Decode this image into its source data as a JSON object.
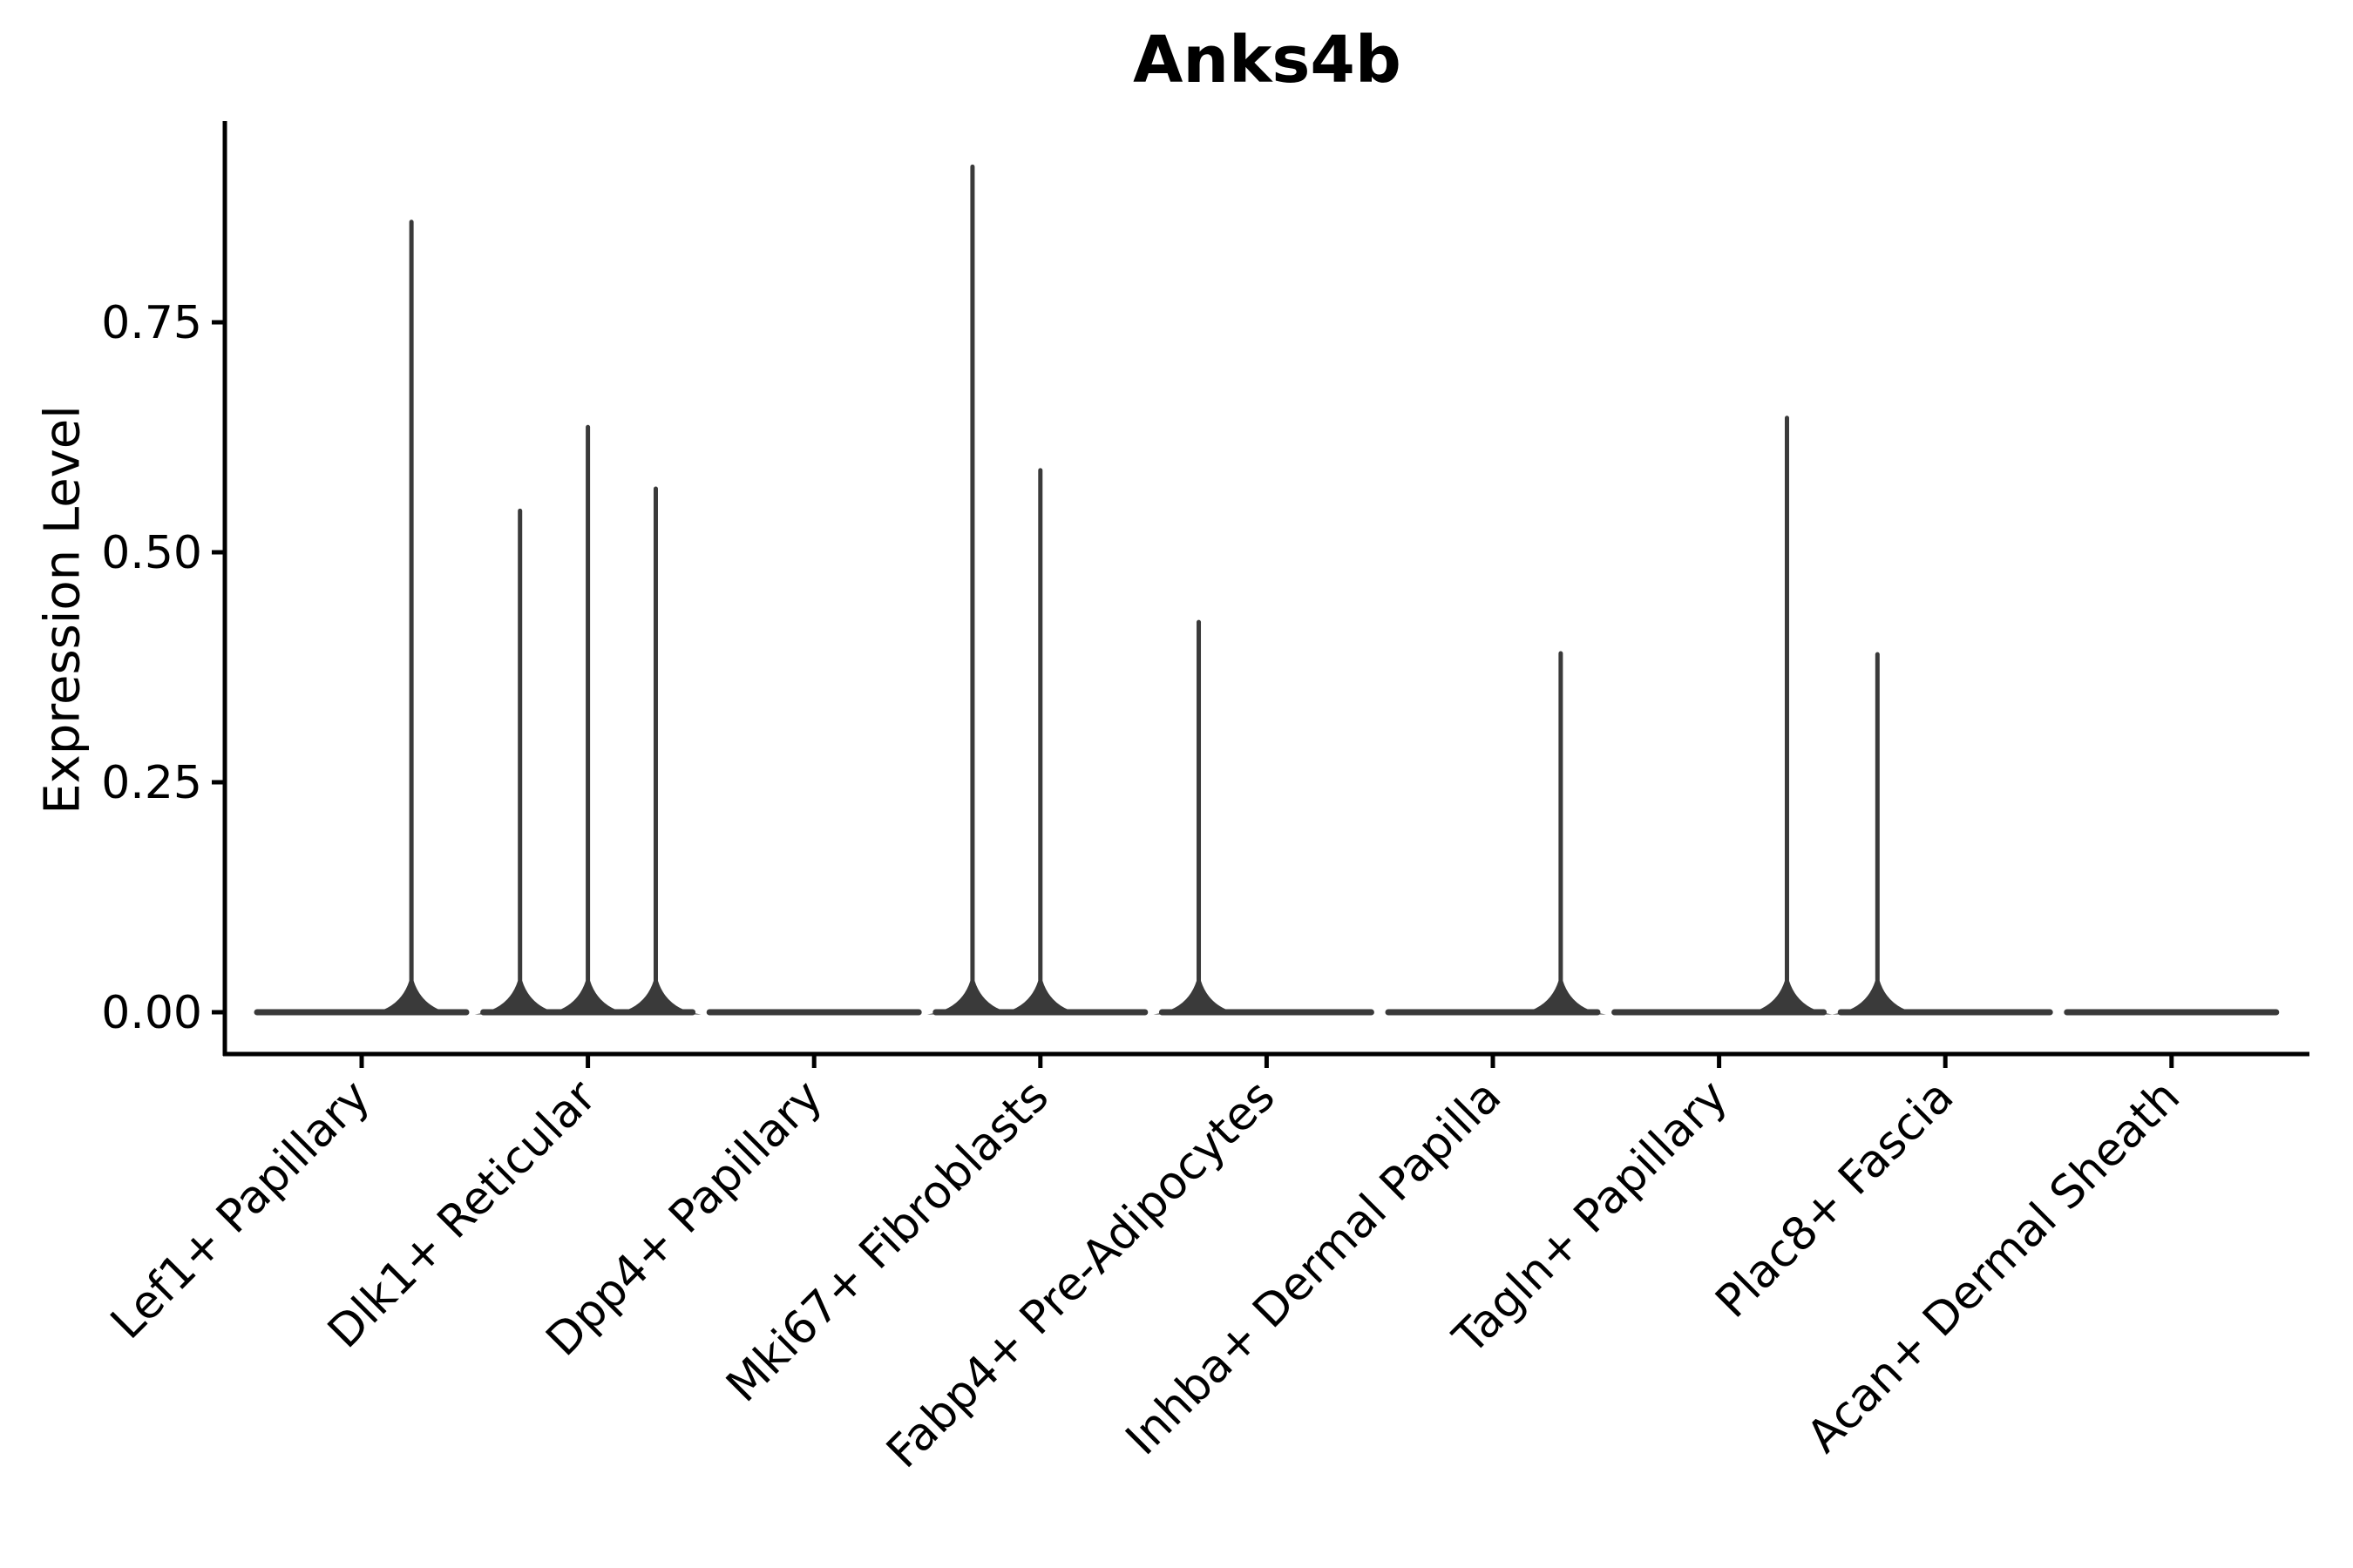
{
  "chart_data": {
    "type": "violin",
    "title": "Anks4b",
    "ylabel": "Expression Level",
    "xlabel": "",
    "ylim": [
      0,
      0.97
    ],
    "grid": false,
    "legend": "none",
    "yticks": [
      {
        "value": 0.0,
        "label": "0.00"
      },
      {
        "value": 0.25,
        "label": "0.25"
      },
      {
        "value": 0.5,
        "label": "0.50"
      },
      {
        "value": 0.75,
        "label": "0.75"
      }
    ],
    "categories": [
      "Lef1+ Papillary",
      "Dlk1+ Reticular",
      "Dpp4+ Papillary",
      "Mki67+ Fibroblasts",
      "Fabp4+ Pre-Adipocytes",
      "Inhba+ Dermal Papilla",
      "Tagln+ Papillary",
      "Plac8+ Fascia",
      "Acan+ Dermal Sheath"
    ],
    "violins": [
      {
        "category": "Lef1+ Papillary",
        "baseline_value": 0,
        "spikes": [
          {
            "pos": 0.22,
            "value": 0.861
          }
        ]
      },
      {
        "category": "Dlk1+ Reticular",
        "baseline_value": 0,
        "spikes": [
          {
            "pos": -0.3,
            "value": 0.547
          },
          {
            "pos": 0.0,
            "value": 0.638
          },
          {
            "pos": 0.3,
            "value": 0.571
          }
        ]
      },
      {
        "category": "Dpp4+ Papillary",
        "baseline_value": 0,
        "spikes": []
      },
      {
        "category": "Mki67+ Fibroblasts",
        "baseline_value": 0,
        "spikes": [
          {
            "pos": -0.3,
            "value": 0.921
          },
          {
            "pos": 0.0,
            "value": 0.591
          }
        ]
      },
      {
        "category": "Fabp4+ Pre-Adipocytes",
        "baseline_value": 0,
        "spikes": [
          {
            "pos": -0.3,
            "value": 0.426
          }
        ]
      },
      {
        "category": "Inhba+ Dermal Papilla",
        "baseline_value": 0,
        "spikes": [
          {
            "pos": 0.3,
            "value": 0.392
          }
        ]
      },
      {
        "category": "Tagln+ Papillary",
        "baseline_value": 0,
        "spikes": [
          {
            "pos": 0.3,
            "value": 0.648
          }
        ]
      },
      {
        "category": "Plac8+ Fascia",
        "baseline_value": 0,
        "spikes": [
          {
            "pos": -0.3,
            "value": 0.391
          }
        ]
      },
      {
        "category": "Acan+ Dermal Sheath",
        "baseline_value": 0,
        "spikes": []
      }
    ],
    "colors": {
      "violin_line": "#3a3a3a",
      "axis": "#000000",
      "text": "#000000",
      "background": "#ffffff"
    }
  }
}
